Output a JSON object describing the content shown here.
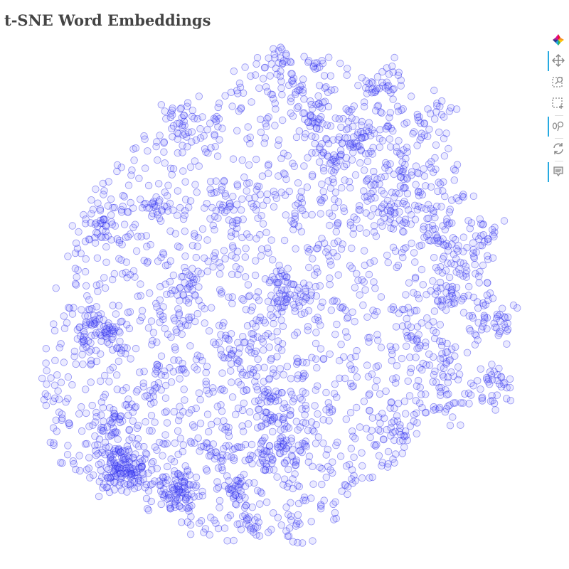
{
  "title": "t-SNE Word Embeddings",
  "toolbar": {
    "tools": [
      "bokeh-logo",
      "pan-icon",
      "box-zoom-icon",
      "box-select-icon",
      "wheel-zoom-icon",
      "reset-icon",
      "hover-icon"
    ],
    "active": [
      "pan-icon",
      "wheel-zoom-icon",
      "hover-icon"
    ]
  },
  "colors": {
    "point_fill": "#6f6fff",
    "point_stroke": "#2020e8",
    "title": "#444444",
    "active_tool": "#26aae1"
  },
  "chart_data": {
    "type": "scatter",
    "title": "t-SNE Word Embeddings",
    "xlabel": "",
    "ylabel": "",
    "axes_visible": false,
    "grid": false,
    "legend": "none",
    "marker": "circle",
    "fill_alpha": 0.15,
    "xlim": [
      -60,
      60
    ],
    "ylim": [
      -60,
      60
    ],
    "seed": 7,
    "n_background": 1650,
    "clusters": [
      {
        "x": -38,
        "y": -41,
        "n": 150,
        "s": 3.2
      },
      {
        "x": -25,
        "y": -47,
        "n": 80,
        "s": 2.8
      },
      {
        "x": -44,
        "y": -8,
        "n": 70,
        "s": 3.0
      },
      {
        "x": -8,
        "y": -14,
        "n": 40,
        "s": 3.5
      },
      {
        "x": -1,
        "y": -39,
        "n": 60,
        "s": 3.4
      },
      {
        "x": -11,
        "y": -47,
        "n": 25,
        "s": 2.0
      },
      {
        "x": -7,
        "y": -55,
        "n": 15,
        "s": 2.0
      },
      {
        "x": 0,
        "y": -26,
        "n": 45,
        "s": 3.5
      },
      {
        "x": 2,
        "y": 2,
        "n": 60,
        "s": 3.5
      },
      {
        "x": -22,
        "y": 4,
        "n": 25,
        "s": 3.0
      },
      {
        "x": 29,
        "y": 30,
        "n": 40,
        "s": 3.0
      },
      {
        "x": 19,
        "y": 39,
        "n": 40,
        "s": 3.0
      },
      {
        "x": 26,
        "y": 53,
        "n": 40,
        "s": 2.6
      },
      {
        "x": 8,
        "y": 46,
        "n": 30,
        "s": 2.6
      },
      {
        "x": 0,
        "y": 58,
        "n": 25,
        "s": 2.2
      },
      {
        "x": 9,
        "y": 57,
        "n": 8,
        "s": 1.2
      },
      {
        "x": 38,
        "y": 45,
        "n": 25,
        "s": 2.6
      },
      {
        "x": 25,
        "y": 21,
        "n": 25,
        "s": 2.6
      },
      {
        "x": 37,
        "y": 17,
        "n": 40,
        "s": 4.0
      },
      {
        "x": 50,
        "y": 15,
        "n": 30,
        "s": 3.0
      },
      {
        "x": 42,
        "y": 2,
        "n": 40,
        "s": 4.0
      },
      {
        "x": 52,
        "y": -6,
        "n": 35,
        "s": 3.0
      },
      {
        "x": 52,
        "y": -22,
        "n": 40,
        "s": 3.0
      },
      {
        "x": 32,
        "y": -10,
        "n": 35,
        "s": 4.0
      },
      {
        "x": -43,
        "y": 19,
        "n": 20,
        "s": 2.0
      },
      {
        "x": -29,
        "y": 23,
        "n": 20,
        "s": 2.4
      },
      {
        "x": -12,
        "y": 22,
        "n": 20,
        "s": 2.4
      },
      {
        "x": -40,
        "y": -30,
        "n": 30,
        "s": 2.0
      },
      {
        "x": 27,
        "y": -34,
        "n": 25,
        "s": 2.5
      },
      {
        "x": 40,
        "y": -26,
        "n": 30,
        "s": 3.0
      },
      {
        "x": 13,
        "y": 36,
        "n": 20,
        "s": 2.5
      },
      {
        "x": -30,
        "y": -20,
        "n": 25,
        "s": 3.0
      },
      {
        "x": -14,
        "y": -38,
        "n": 20,
        "s": 3.0
      },
      {
        "x": -25,
        "y": 45,
        "n": 15,
        "s": 2.5
      },
      {
        "x": -17,
        "y": 43,
        "n": 15,
        "s": 2.5
      }
    ],
    "hull_y": [
      -60,
      -40,
      -20,
      0,
      20,
      40,
      60
    ],
    "hull_left": [
      -18,
      -55,
      -58,
      -55,
      -50,
      -35,
      -5
    ],
    "hull_right": [
      8,
      28,
      45,
      52,
      50,
      40,
      15
    ]
  }
}
